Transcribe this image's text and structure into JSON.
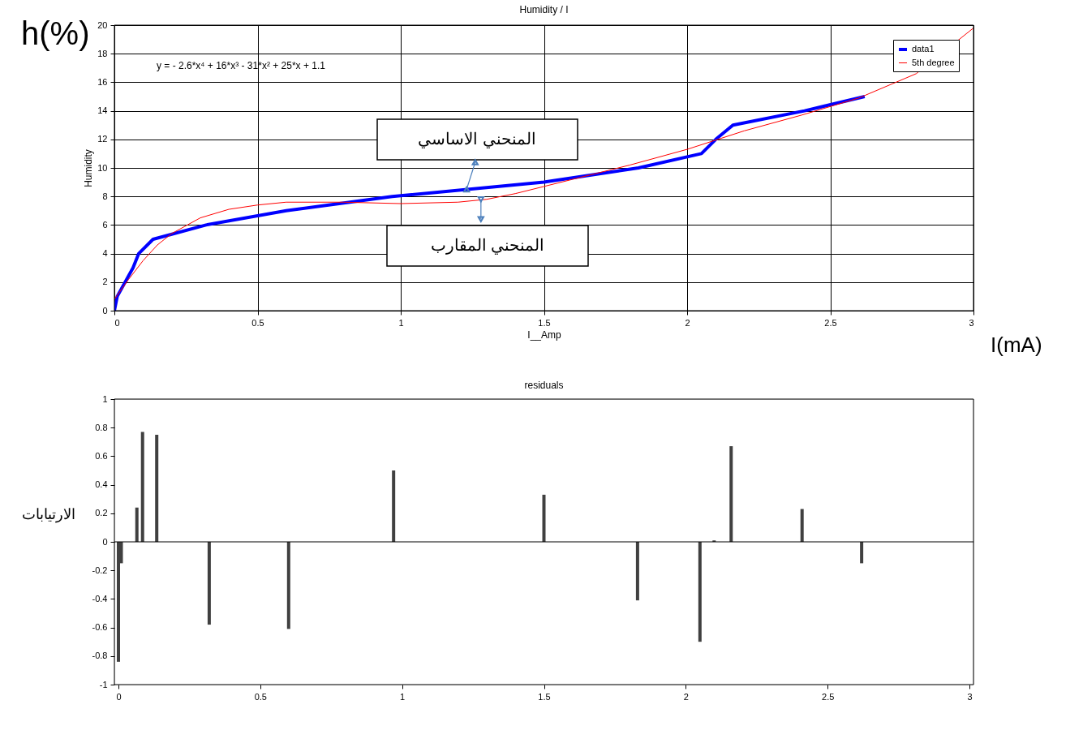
{
  "chart_data": [
    {
      "type": "line",
      "title": "Humidity / I",
      "xlabel": "I__Amp",
      "ylabel": "Humidity",
      "series": [
        {
          "name": "data1",
          "color": "#0000ff",
          "x": [
            0,
            0.01,
            0.065,
            0.085,
            0.135,
            0.32,
            0.6,
            0.97,
            1.5,
            1.83,
            2.05,
            2.1,
            2.16,
            2.41,
            2.62
          ],
          "values": [
            0,
            1,
            3,
            4,
            5,
            6,
            7,
            8,
            9,
            10,
            11,
            12,
            13,
            14,
            15
          ]
        },
        {
          "name": "5th degree",
          "color": "#ff0000",
          "x": [
            0,
            0.05,
            0.1,
            0.15,
            0.2,
            0.3,
            0.4,
            0.5,
            0.6,
            0.8,
            1.0,
            1.2,
            1.3,
            1.4,
            1.5,
            1.6,
            1.8,
            2.0,
            2.2,
            2.4,
            2.6,
            2.8,
            3.0
          ],
          "values": [
            0.8,
            2.2,
            3.5,
            4.6,
            5.4,
            6.5,
            7.1,
            7.4,
            7.6,
            7.6,
            7.5,
            7.6,
            7.8,
            8.2,
            8.7,
            9.2,
            10.2,
            11.3,
            12.6,
            13.7,
            14.9,
            16.6,
            19.8
          ]
        }
      ],
      "xlim": [
        0,
        3
      ],
      "xticks": [
        0,
        0.5,
        1,
        1.5,
        2,
        2.5,
        3
      ],
      "ylim": [
        0,
        20
      ],
      "yticks": [
        0,
        2,
        4,
        6,
        8,
        10,
        12,
        14,
        16,
        18,
        20
      ],
      "grid": true,
      "legend": "top right",
      "annotations": [
        "h(%)",
        "I(mA)",
        "y = - 2.6*x⁴ + 16*x³ - 31*x² + 25*x + 1.1",
        {
          "text": "المنحني الاساسي",
          "x": 1.23,
          "y": 8.5
        },
        {
          "text": "المنحني المقارب",
          "x": 1.28,
          "y": 7.8
        }
      ]
    },
    {
      "type": "bar",
      "title": "residuals",
      "x": [
        0,
        0.01,
        0.065,
        0.085,
        0.135,
        0.32,
        0.6,
        0.97,
        1.5,
        1.83,
        2.05,
        2.1,
        2.16,
        2.41,
        2.62
      ],
      "values": [
        -0.84,
        -0.15,
        0.24,
        0.77,
        0.75,
        -0.58,
        -0.61,
        0.5,
        0.33,
        -0.41,
        -0.7,
        0.01,
        0.67,
        0.23,
        -0.15
      ],
      "colors": [
        "#404040",
        "#404040",
        "#404040",
        "#404040",
        "#404040",
        "#404040",
        "#404040",
        "#404040",
        "#404040",
        "#404040",
        "#404040",
        "#404040",
        "#404040",
        "#404040",
        "#404040"
      ],
      "xlim": [
        0,
        3
      ],
      "xticks": [
        0,
        0.5,
        1,
        1.5,
        2,
        2.5,
        3
      ],
      "ylim": [
        -1,
        1
      ],
      "yticks": [
        -1,
        -0.8,
        -0.6,
        -0.4,
        -0.2,
        0,
        0.2,
        0.4,
        0.6,
        0.8,
        1
      ],
      "grid": false,
      "ref_lines": [
        {
          "axis": "y",
          "value": 0
        }
      ],
      "annotations": [
        "الارتيابات"
      ]
    }
  ]
}
